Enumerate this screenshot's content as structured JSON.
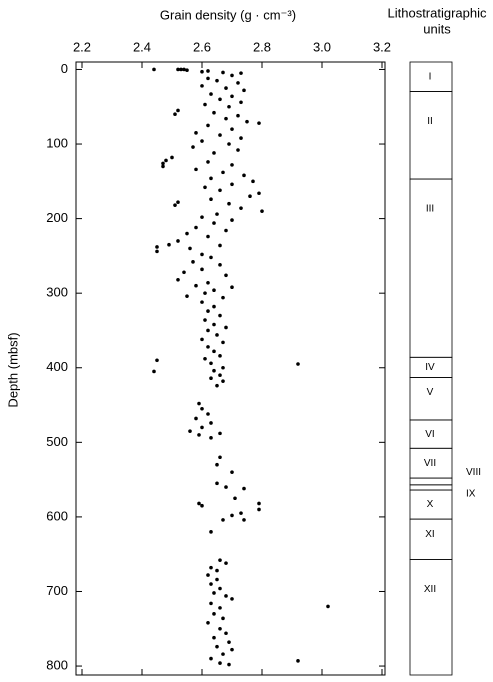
{
  "chart_data": [
    {
      "type": "scatter",
      "title": "Grain density (g · cm⁻³)",
      "y_label": "Depth (mbsf)",
      "color": "#000000",
      "xlim": [
        2.18,
        3.21
      ],
      "ylim": [
        -10,
        812
      ],
      "xticks": [
        2.2,
        2.4,
        2.6,
        2.8,
        {
          "value": 3,
          "label": "3.0"
        },
        3.2
      ],
      "yticks": [
        0,
        100,
        200,
        300,
        400,
        500,
        600,
        700,
        800
      ],
      "x": [
        2.44,
        2.52,
        2.53,
        2.54,
        2.55,
        2.6,
        2.62,
        2.67,
        2.7,
        2.73,
        2.62,
        2.65,
        2.72,
        2.6,
        2.68,
        2.74,
        2.63,
        2.7,
        2.66,
        2.73,
        2.61,
        2.69,
        2.52,
        2.51,
        2.64,
        2.72,
        2.68,
        2.75,
        2.79,
        2.62,
        2.7,
        2.58,
        2.66,
        2.73,
        2.6,
        2.69,
        2.57,
        2.72,
        2.64,
        2.5,
        2.48,
        2.47,
        2.47,
        2.62,
        2.7,
        2.58,
        2.67,
        2.74,
        2.63,
        2.77,
        2.7,
        2.61,
        2.66,
        2.79,
        2.76,
        2.63,
        2.52,
        2.51,
        2.69,
        2.73,
        2.8,
        2.65,
        2.6,
        2.7,
        2.64,
        2.58,
        2.68,
        2.55,
        2.62,
        2.52,
        2.49,
        2.45,
        2.45,
        2.56,
        2.66,
        2.6,
        2.63,
        2.57,
        2.66,
        2.6,
        2.54,
        2.68,
        2.52,
        2.62,
        2.58,
        2.7,
        2.64,
        2.61,
        2.55,
        2.67,
        2.6,
        2.64,
        2.62,
        2.66,
        2.61,
        2.64,
        2.68,
        2.62,
        2.65,
        2.6,
        2.67,
        2.62,
        2.64,
        2.66,
        2.61,
        2.45,
        2.44,
        2.92,
        2.63,
        2.67,
        2.64,
        2.66,
        2.63,
        2.67,
        2.65,
        2.59,
        2.6,
        2.62,
        2.58,
        2.63,
        2.6,
        2.56,
        2.59,
        2.63,
        2.66,
        2.66,
        2.65,
        2.7,
        2.65,
        2.68,
        2.74,
        2.71,
        2.59,
        2.6,
        2.79,
        2.79,
        2.73,
        2.7,
        2.67,
        2.74,
        2.63,
        2.66,
        2.68,
        2.63,
        2.65,
        2.62,
        2.65,
        2.63,
        2.66,
        2.64,
        2.68,
        2.7,
        2.63,
        3.02,
        2.66,
        2.64,
        2.67,
        2.62,
        2.66,
        2.68,
        2.64,
        2.69,
        2.65,
        2.7,
        2.67,
        2.63,
        2.92,
        2.66,
        2.69
      ],
      "values": [
        0,
        0,
        0,
        0,
        1,
        3,
        2,
        4,
        8,
        5,
        12,
        15,
        18,
        22,
        25,
        28,
        33,
        36,
        40,
        44,
        47,
        50,
        55,
        60,
        58,
        62,
        66,
        70,
        72,
        75,
        80,
        85,
        88,
        92,
        96,
        100,
        104,
        108,
        112,
        118,
        122,
        126,
        130,
        124,
        128,
        134,
        138,
        142,
        146,
        150,
        154,
        158,
        162,
        166,
        170,
        174,
        178,
        182,
        180,
        186,
        190,
        194,
        198,
        202,
        206,
        212,
        216,
        220,
        224,
        230,
        235,
        238,
        244,
        240,
        236,
        248,
        252,
        258,
        262,
        268,
        272,
        276,
        282,
        286,
        290,
        292,
        296,
        300,
        304,
        306,
        312,
        318,
        324,
        330,
        336,
        342,
        346,
        350,
        356,
        362,
        366,
        372,
        378,
        384,
        388,
        390,
        405,
        395,
        394,
        400,
        404,
        410,
        414,
        418,
        424,
        448,
        455,
        462,
        468,
        474,
        480,
        485,
        490,
        494,
        488,
        520,
        530,
        540,
        555,
        560,
        562,
        575,
        582,
        585,
        582,
        590,
        595,
        598,
        604,
        604,
        620,
        658,
        662,
        668,
        672,
        678,
        684,
        690,
        696,
        702,
        706,
        710,
        716,
        720,
        722,
        730,
        736,
        742,
        750,
        756,
        762,
        768,
        774,
        778,
        784,
        790,
        793,
        796,
        798
      ]
    },
    {
      "type": "units",
      "title_lines": [
        "Lithostratigraphic",
        "units"
      ],
      "ylim": [
        -10,
        812
      ],
      "units": [
        {
          "label": "I",
          "top": -10,
          "base": 29.5
        },
        {
          "label": "II",
          "top": 29.5,
          "base": 147
        },
        {
          "label": "III",
          "top": 147,
          "base": 386
        },
        {
          "label": "IV",
          "top": 386,
          "base": 413
        },
        {
          "label": "V",
          "top": 413,
          "base": 470
        },
        {
          "label": "VI",
          "top": 470,
          "base": 508
        },
        {
          "label": "VII",
          "top": 508,
          "base": 548
        },
        {
          "label": "VIII",
          "top": 548,
          "base": 557
        },
        {
          "label": "IX",
          "top": 557,
          "base": 564
        },
        {
          "label": "X",
          "top": 564,
          "base": 603
        },
        {
          "label": "XI",
          "top": 603,
          "base": 657
        },
        {
          "label": "XII",
          "top": 657,
          "base": 812
        }
      ]
    }
  ]
}
